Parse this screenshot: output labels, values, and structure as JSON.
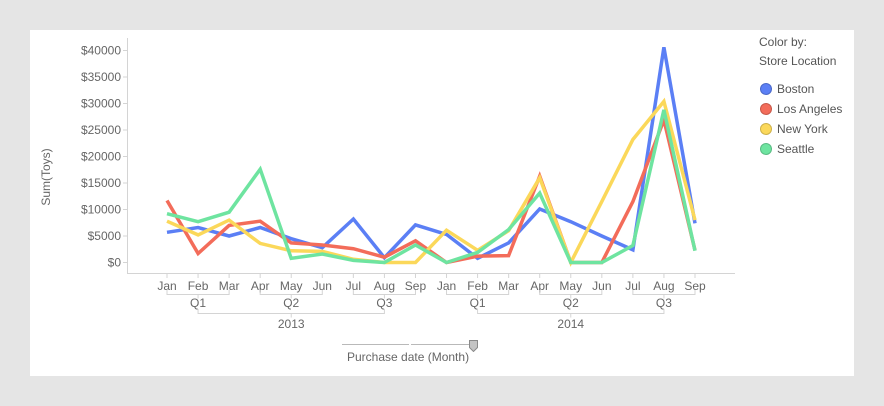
{
  "chart_data": {
    "type": "line",
    "title": "",
    "xlabel": "Purchase date (Month)",
    "ylabel": "Sum(Toys)",
    "ylim": [
      0,
      40000
    ],
    "yticks": [
      0,
      5000,
      10000,
      15000,
      20000,
      25000,
      30000,
      35000,
      40000
    ],
    "ytick_labels": [
      "$0",
      "$5000",
      "$10000",
      "$15000",
      "$20000",
      "$25000",
      "$30000",
      "$35000",
      "$40000"
    ],
    "grid": false,
    "legend_position": "right",
    "legend_title": "Color by:",
    "legend_subtitle": "Store Location",
    "categories": [
      "2013 Jan",
      "2013 Feb",
      "2013 Mar",
      "2013 Apr",
      "2013 May",
      "2013 Jun",
      "2013 Jul",
      "2013 Aug",
      "2013 Sep",
      "2014 Jan",
      "2014 Feb",
      "2014 Mar",
      "2014 Apr",
      "2014 May",
      "2014 Jun",
      "2014 Jul",
      "2014 Aug",
      "2014 Sep"
    ],
    "x_hierarchy": {
      "months": [
        "Jan",
        "Feb",
        "Mar",
        "Apr",
        "May",
        "Jun",
        "Jul",
        "Aug",
        "Sep",
        "Jan",
        "Feb",
        "Mar",
        "Apr",
        "May",
        "Jun",
        "Jul",
        "Aug",
        "Sep"
      ],
      "quarters": [
        {
          "label": "Q1",
          "start": 0,
          "end": 2
        },
        {
          "label": "Q2",
          "start": 3,
          "end": 5
        },
        {
          "label": "Q3",
          "start": 6,
          "end": 8
        },
        {
          "label": "Q1",
          "start": 9,
          "end": 11
        },
        {
          "label": "Q2",
          "start": 12,
          "end": 14
        },
        {
          "label": "Q3",
          "start": 15,
          "end": 17
        }
      ],
      "years": [
        {
          "label": "2013",
          "first_quarter": 0,
          "last_quarter": 2
        },
        {
          "label": "2014",
          "first_quarter": 3,
          "last_quarter": 5
        }
      ]
    },
    "series": [
      {
        "name": "Boston",
        "color": "#5b7ff5",
        "values": [
          5700,
          6600,
          5000,
          6600,
          4500,
          2800,
          8200,
          900,
          7100,
          5300,
          800,
          3700,
          10100,
          7700,
          5000,
          2400,
          40600,
          7400
        ]
      },
      {
        "name": "Los Angeles",
        "color": "#f36c5a",
        "values": [
          11700,
          1700,
          7000,
          7800,
          3700,
          3300,
          2600,
          1000,
          4100,
          0,
          1200,
          1300,
          16300,
          0,
          0,
          11500,
          26900,
          2300
        ]
      },
      {
        "name": "New York",
        "color": "#fbd85a",
        "values": [
          7800,
          5200,
          8000,
          3600,
          2200,
          2100,
          600,
          0,
          0,
          6100,
          2300,
          6000,
          16000,
          0,
          11500,
          23200,
          30400,
          8000
        ]
      },
      {
        "name": "Seattle",
        "color": "#6ee4a0",
        "values": [
          9200,
          7700,
          9500,
          17600,
          800,
          1600,
          400,
          0,
          3300,
          0,
          1900,
          6200,
          13100,
          0,
          0,
          3200,
          28800,
          2200
        ]
      }
    ]
  }
}
